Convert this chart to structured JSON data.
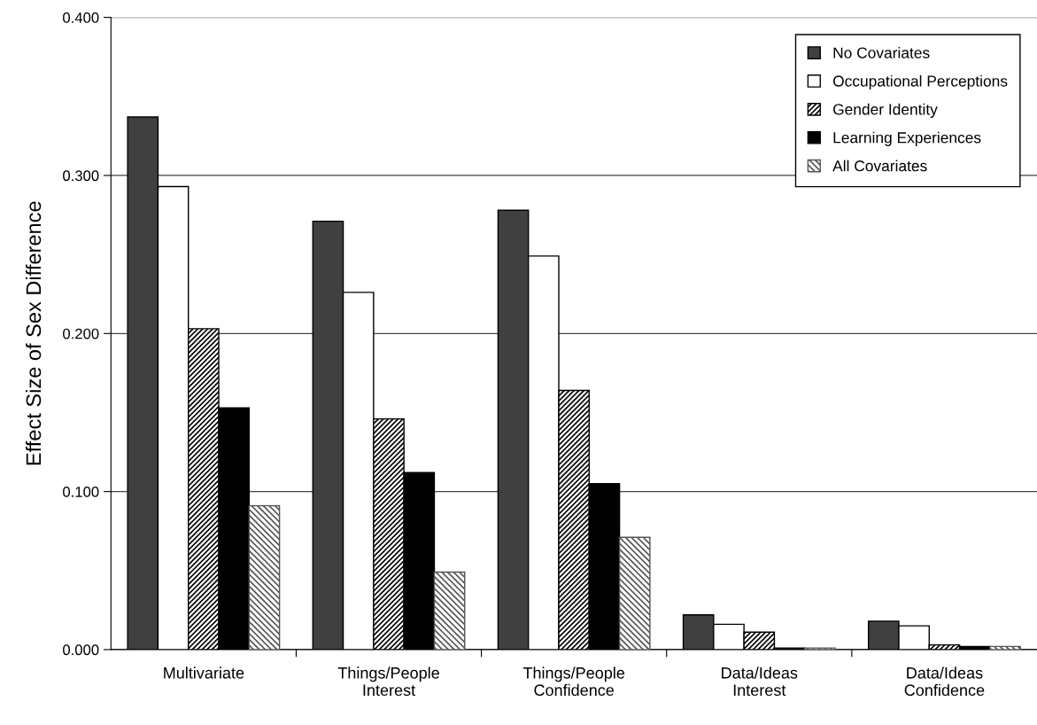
{
  "chart_data": {
    "type": "bar",
    "ylabel": "Effect Size of Sex Difference",
    "categories": [
      "Multivariate",
      "Things/People\nInterest",
      "Things/People\nConfidence",
      "Data/Ideas\nInterest",
      "Data/Ideas\nConfidence"
    ],
    "series": [
      {
        "name": "No Covariates",
        "color": "#404040",
        "values": [
          0.337,
          0.271,
          0.278,
          0.022,
          0.018
        ]
      },
      {
        "name": "Occupational Perceptions",
        "color": "#ffffff",
        "values": [
          0.293,
          0.226,
          0.249,
          0.016,
          0.015
        ]
      },
      {
        "name": "Gender Identity",
        "color": "#000000",
        "values": [
          0.203,
          0.146,
          0.164,
          0.011,
          0.003
        ]
      },
      {
        "name": "Learning Experiences",
        "color": "#000000",
        "values": [
          0.153,
          0.112,
          0.105,
          0.001,
          0.002
        ]
      },
      {
        "name": "All Covariates",
        "color": "#555555",
        "values": [
          0.091,
          0.049,
          0.071,
          0.001,
          0.002
        ]
      }
    ],
    "ylim": [
      0,
      0.4
    ],
    "yticks": [
      {
        "value": 0,
        "label": "0.000"
      },
      {
        "value": 0.1,
        "label": "0.100"
      },
      {
        "value": 0.2,
        "label": "0.200"
      },
      {
        "value": 0.3,
        "label": "0.300"
      },
      {
        "value": 0.4,
        "label": "0.400"
      }
    ],
    "grid": "y",
    "legend": "top right"
  }
}
